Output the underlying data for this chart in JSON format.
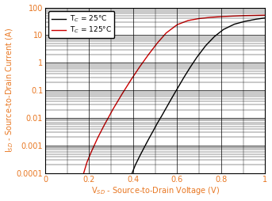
{
  "xlabel": "V$_{SD}$ - Source-to-Drain Voltage (V)",
  "ylabel": "I$_{SD}$ - Source-to-Drain Current (A)",
  "xlim": [
    0,
    1.0
  ],
  "ylim": [
    0.0001,
    100
  ],
  "xticks": [
    0,
    0.2,
    0.4,
    0.6,
    0.8,
    1.0
  ],
  "xtick_labels": [
    "0",
    "0.2",
    "0.4",
    "0.6",
    "0.8",
    "1"
  ],
  "ytick_vals": [
    0.0001,
    0.001,
    0.01,
    0.1,
    1,
    10,
    100
  ],
  "ytick_labels": [
    "0.0001",
    "0.001",
    "0.01",
    "0.1",
    "1",
    "10",
    "100"
  ],
  "legend": [
    {
      "label": "T$_C$ = 25°C",
      "color": "#000000"
    },
    {
      "label": "T$_C$ = 125°C",
      "color": "#cc0000"
    }
  ],
  "curve_25C": {
    "color": "#000000",
    "x": [
      0.395,
      0.41,
      0.43,
      0.45,
      0.47,
      0.49,
      0.51,
      0.53,
      0.55,
      0.57,
      0.59,
      0.61,
      0.63,
      0.66,
      0.69,
      0.73,
      0.77,
      0.81,
      0.86,
      0.91,
      0.96,
      1.0
    ],
    "y": [
      0.0001,
      0.0002,
      0.00042,
      0.00085,
      0.0017,
      0.0033,
      0.0065,
      0.012,
      0.023,
      0.044,
      0.083,
      0.155,
      0.29,
      0.7,
      1.6,
      4.2,
      9.0,
      16,
      25,
      32,
      38,
      42
    ]
  },
  "curve_125C": {
    "color": "#cc0000",
    "x": [
      0.175,
      0.19,
      0.21,
      0.24,
      0.27,
      0.31,
      0.35,
      0.39,
      0.43,
      0.47,
      0.51,
      0.55,
      0.6,
      0.65,
      0.7,
      0.75,
      0.8,
      0.85,
      0.9,
      0.95,
      1.0
    ],
    "y": [
      0.0001,
      0.00025,
      0.0006,
      0.002,
      0.0058,
      0.022,
      0.075,
      0.24,
      0.72,
      2.0,
      5.2,
      12.0,
      24,
      34,
      40,
      44,
      47,
      49,
      51,
      52,
      53
    ]
  },
  "bg_color": "#ffffff",
  "grid_major_color": "#000000",
  "grid_minor_color": "#000000",
  "axis_label_color": "#e87722",
  "tick_label_color": "#e87722",
  "spine_color": "#000000",
  "legend_text_color": "#000000"
}
